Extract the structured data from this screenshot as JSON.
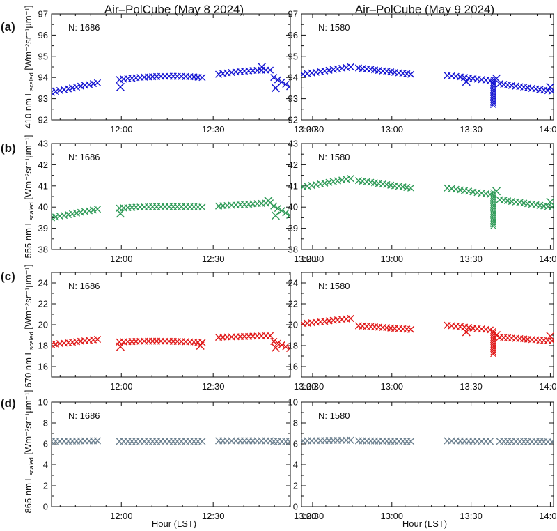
{
  "figure": {
    "x_axis_title": "Hour (LST)"
  },
  "columns": [
    {
      "title": "Air–PolCube (May 8 2024)",
      "n_label": "N: 1686",
      "xticks": [
        "12:00",
        "12:30",
        "13:00"
      ]
    },
    {
      "title": "Air–PolCube (May 9 2024)",
      "n_label": "N: 1580",
      "xticks": [
        "12:30",
        "13:00",
        "13:30",
        "14:00"
      ]
    }
  ],
  "rows": [
    {
      "label": "(a)",
      "ylabel_pre": "410 nm L",
      "ylabel_sub": "scaled",
      "ylabel_post": " [Wm⁻²sr⁻¹µm⁻¹]",
      "color": "#1414d2"
    },
    {
      "label": "(b)",
      "ylabel_pre": "555 nm L",
      "ylabel_sub": "scaled",
      "ylabel_post": " [Wm⁻²sr⁻¹µm⁻¹]",
      "color": "#2e9a57"
    },
    {
      "label": "(c)",
      "ylabel_pre": "670 nm L",
      "ylabel_sub": "scaled",
      "ylabel_post": " [Wm⁻²sr⁻¹µm⁻¹]",
      "color": "#e01818"
    },
    {
      "label": "(d)",
      "ylabel_pre": "865 nm L",
      "ylabel_sub": "scaled",
      "ylabel_post": " [Wm⁻²sr⁻¹µm⁻¹]",
      "color": "#6b7f8e"
    }
  ],
  "chart_data": [
    {
      "type": "scatter",
      "panel": "a-left",
      "wavelength_nm": 410,
      "date": "May 8 2024",
      "n": 1686,
      "xlim": [
        11.62,
        12.92
      ],
      "ylim": [
        92,
        97
      ],
      "yticks": [
        92,
        93,
        94,
        95,
        96,
        97
      ],
      "xticks": [
        12.0,
        12.5,
        13.0
      ],
      "xtick_labels": [
        "12:00",
        "12:30",
        "13:00"
      ],
      "segments": [
        {
          "x0": 11.62,
          "x1": 11.87,
          "y0": 93.3,
          "y1": 93.75,
          "curve": 0
        },
        {
          "x0": 11.99,
          "x1": 12.44,
          "y0": 93.9,
          "y1": 94.0,
          "curve": 0.1
        },
        {
          "x0": 12.53,
          "x1": 12.81,
          "y0": 94.15,
          "y1": 94.35,
          "curve": 0.05
        },
        {
          "x0": 12.83,
          "x1": 12.96,
          "y0": 94.0,
          "y1": 93.35,
          "curve": 0
        }
      ],
      "outliers": [
        {
          "x": 11.995,
          "y": 93.55
        },
        {
          "x": 12.765,
          "y": 94.5
        },
        {
          "x": 12.84,
          "y": 93.5
        }
      ]
    },
    {
      "type": "scatter",
      "panel": "a-right",
      "wavelength_nm": 410,
      "date": "May 9 2024",
      "n": 1580,
      "xlim": [
        12.43,
        14.02
      ],
      "ylim": [
        92,
        97
      ],
      "yticks": [
        92,
        93,
        94,
        95,
        96,
        97
      ],
      "xticks": [
        12.5,
        13.0,
        13.5,
        14.0
      ],
      "xtick_labels": [
        "12:30",
        "13:00",
        "13:30",
        "14:00"
      ],
      "segments": [
        {
          "x0": 12.44,
          "x1": 12.74,
          "y0": 94.15,
          "y1": 94.5,
          "curve": 0
        },
        {
          "x0": 12.79,
          "x1": 13.12,
          "y0": 94.45,
          "y1": 94.15,
          "curve": 0
        },
        {
          "x0": 13.35,
          "x1": 13.62,
          "y0": 94.1,
          "y1": 93.85,
          "curve": 0
        },
        {
          "x0": 13.68,
          "x1": 14.01,
          "y0": 93.7,
          "y1": 93.35,
          "curve": 0
        }
      ],
      "spike": {
        "x": 13.64,
        "y_top": 93.9,
        "y_bottom": 92.7
      },
      "outliers": [
        {
          "x": 13.47,
          "y": 93.8
        },
        {
          "x": 13.66,
          "y": 93.95
        },
        {
          "x": 14.0,
          "y": 93.55
        }
      ]
    },
    {
      "type": "scatter",
      "panel": "b-left",
      "wavelength_nm": 555,
      "date": "May 8 2024",
      "n": 1686,
      "xlim": [
        11.62,
        12.92
      ],
      "ylim": [
        38,
        43
      ],
      "yticks": [
        38,
        39,
        40,
        41,
        42,
        43
      ],
      "xticks": [
        12.0,
        12.5,
        13.0
      ],
      "xtick_labels": [
        "12:00",
        "12:30",
        "13:00"
      ],
      "segments": [
        {
          "x0": 11.62,
          "x1": 11.87,
          "y0": 39.5,
          "y1": 39.9,
          "curve": 0
        },
        {
          "x0": 11.99,
          "x1": 12.44,
          "y0": 39.95,
          "y1": 40.0,
          "curve": 0.05
        },
        {
          "x0": 12.53,
          "x1": 12.81,
          "y0": 40.05,
          "y1": 40.2,
          "curve": 0
        },
        {
          "x0": 12.83,
          "x1": 12.96,
          "y0": 40.05,
          "y1": 39.4,
          "curve": 0
        }
      ],
      "outliers": [
        {
          "x": 11.995,
          "y": 39.7
        },
        {
          "x": 12.8,
          "y": 40.3
        },
        {
          "x": 12.84,
          "y": 39.6
        }
      ]
    },
    {
      "type": "scatter",
      "panel": "b-right",
      "wavelength_nm": 555,
      "date": "May 9 2024",
      "n": 1580,
      "xlim": [
        12.43,
        14.02
      ],
      "ylim": [
        38,
        43
      ],
      "yticks": [
        38,
        39,
        40,
        41,
        42,
        43
      ],
      "xticks": [
        12.5,
        13.0,
        13.5,
        14.0
      ],
      "xtick_labels": [
        "12:30",
        "13:00",
        "13:30",
        "14:00"
      ],
      "segments": [
        {
          "x0": 12.44,
          "x1": 12.74,
          "y0": 40.95,
          "y1": 41.35,
          "curve": 0
        },
        {
          "x0": 12.79,
          "x1": 13.12,
          "y0": 41.25,
          "y1": 40.9,
          "curve": 0
        },
        {
          "x0": 13.35,
          "x1": 13.62,
          "y0": 40.9,
          "y1": 40.6,
          "curve": 0
        },
        {
          "x0": 13.68,
          "x1": 14.01,
          "y0": 40.35,
          "y1": 40.0,
          "curve": 0
        }
      ],
      "spike": {
        "x": 13.64,
        "y_top": 40.7,
        "y_bottom": 39.1
      },
      "outliers": [
        {
          "x": 13.66,
          "y": 40.75
        },
        {
          "x": 14.0,
          "y": 40.25
        }
      ]
    },
    {
      "type": "scatter",
      "panel": "c-left",
      "wavelength_nm": 670,
      "date": "May 8 2024",
      "n": 1686,
      "xlim": [
        11.62,
        12.92
      ],
      "ylim": [
        15,
        25
      ],
      "yticks": [
        16,
        18,
        20,
        22,
        24
      ],
      "xticks": [
        12.0,
        12.5,
        13.0
      ],
      "xtick_labels": [
        "12:00",
        "12:30",
        "13:00"
      ],
      "segments": [
        {
          "x0": 11.62,
          "x1": 11.87,
          "y0": 18.1,
          "y1": 18.6,
          "curve": 0
        },
        {
          "x0": 11.99,
          "x1": 12.44,
          "y0": 18.35,
          "y1": 18.3,
          "curve": 0.1
        },
        {
          "x0": 12.53,
          "x1": 12.81,
          "y0": 18.8,
          "y1": 18.95,
          "curve": 0
        },
        {
          "x0": 12.83,
          "x1": 12.96,
          "y0": 18.4,
          "y1": 17.4,
          "curve": 0
        }
      ],
      "outliers": [
        {
          "x": 11.995,
          "y": 17.9
        },
        {
          "x": 12.84,
          "y": 17.8
        },
        {
          "x": 12.43,
          "y": 18.0
        }
      ]
    },
    {
      "type": "scatter",
      "panel": "c-right",
      "wavelength_nm": 670,
      "date": "May 9 2024",
      "n": 1580,
      "xlim": [
        12.43,
        14.02
      ],
      "ylim": [
        15,
        25
      ],
      "yticks": [
        16,
        18,
        20,
        22,
        24
      ],
      "xticks": [
        12.5,
        13.0,
        13.5,
        14.0
      ],
      "xtick_labels": [
        "12:30",
        "13:00",
        "13:30",
        "14:00"
      ],
      "segments": [
        {
          "x0": 12.44,
          "x1": 12.74,
          "y0": 20.1,
          "y1": 20.6,
          "curve": 0
        },
        {
          "x0": 12.79,
          "x1": 13.12,
          "y0": 19.9,
          "y1": 19.55,
          "curve": 0
        },
        {
          "x0": 13.35,
          "x1": 13.62,
          "y0": 19.95,
          "y1": 19.5,
          "curve": 0
        },
        {
          "x0": 13.68,
          "x1": 14.01,
          "y0": 18.8,
          "y1": 18.45,
          "curve": 0
        }
      ],
      "spike": {
        "x": 13.64,
        "y_top": 19.4,
        "y_bottom": 17.2
      },
      "outliers": [
        {
          "x": 13.47,
          "y": 19.3
        },
        {
          "x": 14.0,
          "y": 18.9
        },
        {
          "x": 13.66,
          "y": 19.0
        }
      ]
    },
    {
      "type": "scatter",
      "panel": "d-left",
      "wavelength_nm": 865,
      "date": "May 8 2024",
      "n": 1686,
      "xlim": [
        11.62,
        12.92
      ],
      "ylim": [
        0,
        10
      ],
      "yticks": [
        0,
        2,
        4,
        6,
        8,
        10
      ],
      "xticks": [
        12.0,
        12.5,
        13.0
      ],
      "xtick_labels": [
        "12:00",
        "12:30",
        "13:00"
      ],
      "segments": [
        {
          "x0": 11.62,
          "x1": 11.87,
          "y0": 6.25,
          "y1": 6.3,
          "curve": 0
        },
        {
          "x0": 11.99,
          "x1": 12.44,
          "y0": 6.25,
          "y1": 6.25,
          "curve": 0
        },
        {
          "x0": 12.53,
          "x1": 12.81,
          "y0": 6.3,
          "y1": 6.3,
          "curve": 0
        },
        {
          "x0": 12.83,
          "x1": 12.96,
          "y0": 6.25,
          "y1": 6.2,
          "curve": 0
        }
      ],
      "outliers": []
    },
    {
      "type": "scatter",
      "panel": "d-right",
      "wavelength_nm": 865,
      "date": "May 9 2024",
      "n": 1580,
      "xlim": [
        12.43,
        14.02
      ],
      "ylim": [
        0,
        10
      ],
      "yticks": [
        0,
        2,
        4,
        6,
        8,
        10
      ],
      "xticks": [
        12.5,
        13.0,
        13.5,
        14.0
      ],
      "xtick_labels": [
        "12:30",
        "13:00",
        "13:30",
        "14:00"
      ],
      "segments": [
        {
          "x0": 12.44,
          "x1": 12.74,
          "y0": 6.3,
          "y1": 6.35,
          "curve": 0
        },
        {
          "x0": 12.79,
          "x1": 13.12,
          "y0": 6.3,
          "y1": 6.25,
          "curve": 0
        },
        {
          "x0": 13.35,
          "x1": 13.62,
          "y0": 6.3,
          "y1": 6.25,
          "curve": 0
        },
        {
          "x0": 13.68,
          "x1": 14.01,
          "y0": 6.25,
          "y1": 6.2,
          "curve": 0
        }
      ],
      "outliers": []
    }
  ]
}
